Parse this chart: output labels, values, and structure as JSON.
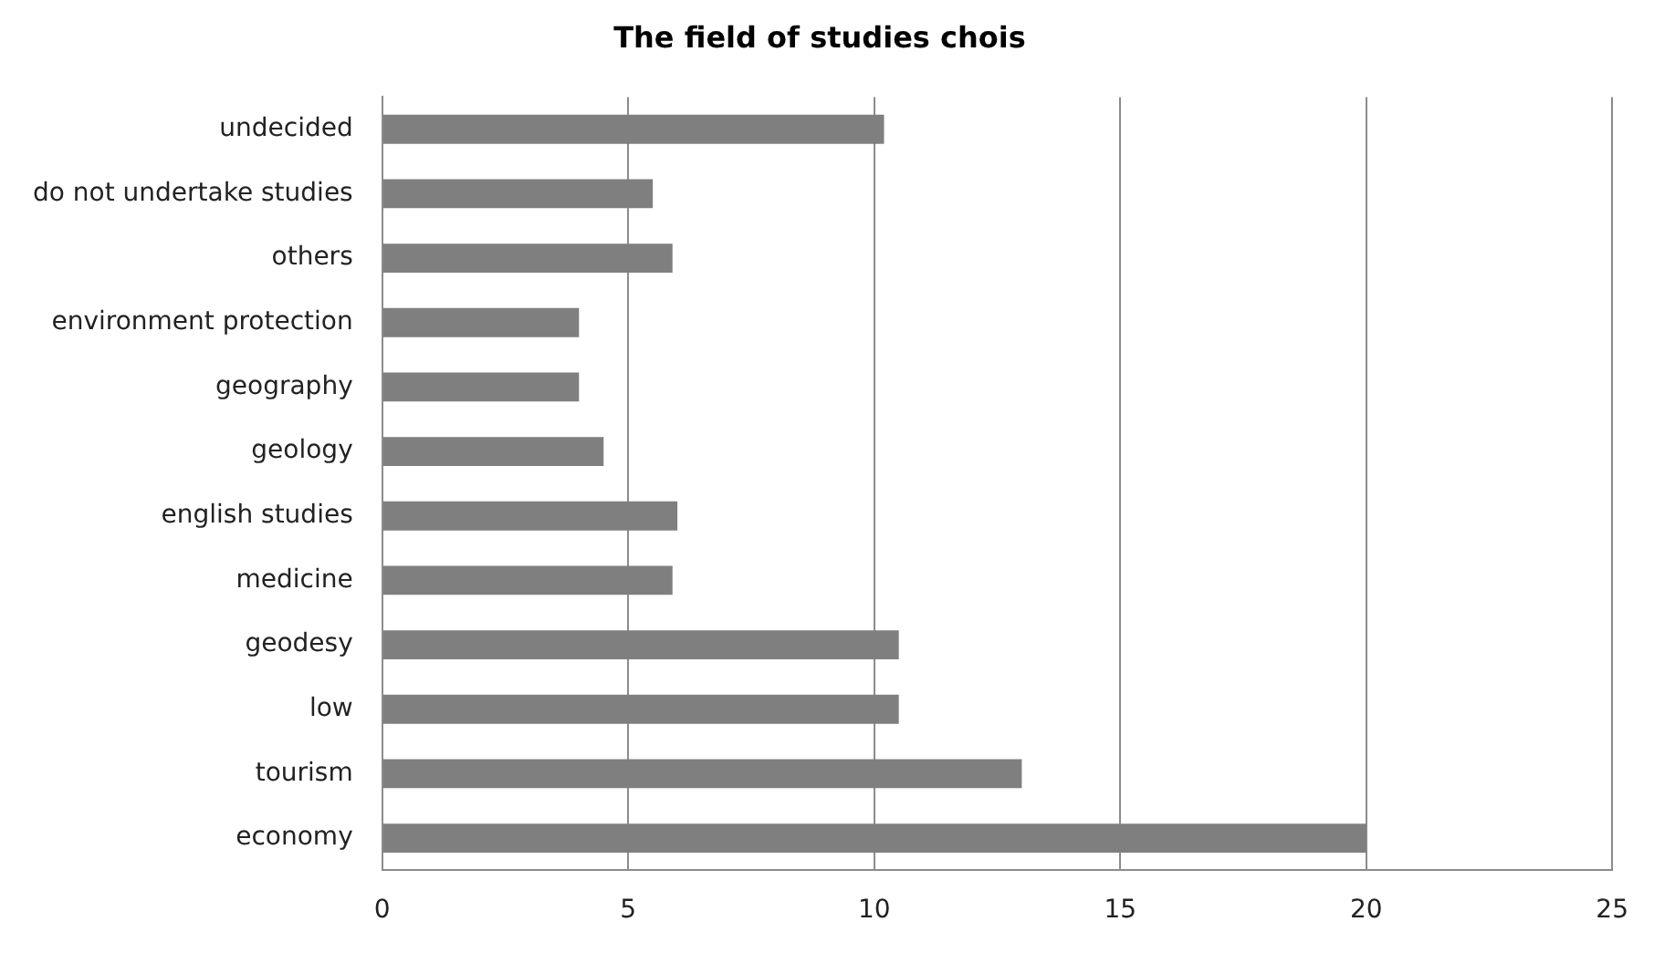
{
  "chart_data": {
    "type": "bar",
    "orientation": "horizontal",
    "title": "The field of studies chois",
    "categories": [
      "undecided",
      "do not undertake studies",
      "others",
      "environment protection",
      "geography",
      "geology",
      "english studies",
      "medicine",
      "geodesy",
      "low",
      "tourism",
      "economy"
    ],
    "values": [
      10.2,
      5.5,
      5.9,
      4.0,
      4.0,
      4.5,
      6.0,
      5.9,
      10.5,
      10.5,
      13.0,
      20.0
    ],
    "color": "#7f7f7f",
    "xlim": [
      0,
      25
    ],
    "xticks": [
      0,
      5,
      10,
      15,
      20,
      25
    ],
    "grid": "x",
    "legend": false
  }
}
